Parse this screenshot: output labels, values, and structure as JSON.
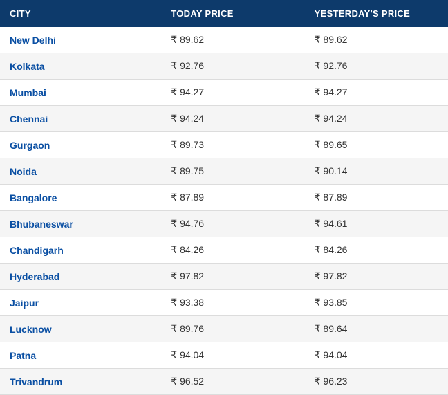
{
  "table": {
    "type": "table",
    "header_bg": "#0d3a6b",
    "header_text_color": "#ffffff",
    "row_alt_bg": "#f5f5f5",
    "row_bg": "#ffffff",
    "border_color": "#dcdcdc",
    "link_color": "#0a4fa3",
    "text_color": "#333333",
    "columns": [
      "CITY",
      "TODAY PRICE",
      "YESTERDAY'S PRICE"
    ],
    "rows": [
      {
        "city": "New Delhi",
        "today": "₹ 89.62",
        "yesterday": "₹ 89.62"
      },
      {
        "city": "Kolkata",
        "today": "₹ 92.76",
        "yesterday": "₹ 92.76"
      },
      {
        "city": "Mumbai",
        "today": "₹ 94.27",
        "yesterday": "₹ 94.27"
      },
      {
        "city": "Chennai",
        "today": "₹ 94.24",
        "yesterday": "₹ 94.24"
      },
      {
        "city": "Gurgaon",
        "today": "₹ 89.73",
        "yesterday": "₹ 89.65"
      },
      {
        "city": "Noida",
        "today": "₹ 89.75",
        "yesterday": "₹ 90.14"
      },
      {
        "city": "Bangalore",
        "today": "₹ 87.89",
        "yesterday": "₹ 87.89"
      },
      {
        "city": "Bhubaneswar",
        "today": "₹ 94.76",
        "yesterday": "₹ 94.61"
      },
      {
        "city": "Chandigarh",
        "today": "₹ 84.26",
        "yesterday": "₹ 84.26"
      },
      {
        "city": "Hyderabad",
        "today": "₹ 97.82",
        "yesterday": "₹ 97.82"
      },
      {
        "city": "Jaipur",
        "today": "₹ 93.38",
        "yesterday": "₹ 93.85"
      },
      {
        "city": "Lucknow",
        "today": "₹ 89.76",
        "yesterday": "₹ 89.64"
      },
      {
        "city": "Patna",
        "today": "₹ 94.04",
        "yesterday": "₹ 94.04"
      },
      {
        "city": "Trivandrum",
        "today": "₹ 96.52",
        "yesterday": "₹ 96.23"
      }
    ]
  }
}
